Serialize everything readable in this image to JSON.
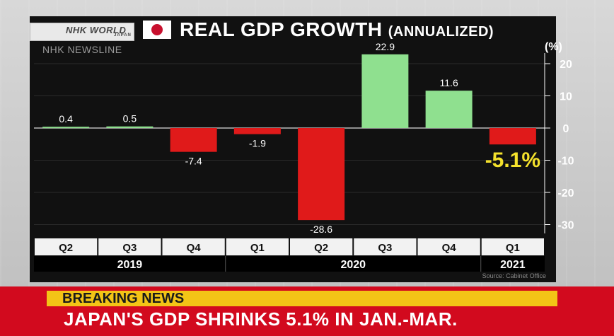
{
  "logo": {
    "brand": "NHK WORLD",
    "sub": "JAPAN"
  },
  "header": {
    "title_main": "REAL GDP GROWTH",
    "title_paren": "(ANNUALIZED)",
    "watermark": "NHK NEWSLINE"
  },
  "unit": "(%)",
  "source": "Source: Cabinet Office",
  "breaking": {
    "tag": "BREAKING NEWS",
    "headline": "JAPAN'S GDP SHRINKS 5.1% IN JAN.-MAR."
  },
  "colors": {
    "positive": "#8fe08f",
    "negative": "#e01a1a",
    "highlight": "#f4e12c"
  },
  "chart_data": {
    "type": "bar",
    "categories": [
      "Q2",
      "Q3",
      "Q4",
      "Q1",
      "Q2",
      "Q3",
      "Q4",
      "Q1"
    ],
    "years": [
      {
        "label": "2019",
        "span": [
          0,
          2
        ]
      },
      {
        "label": "2020",
        "span": [
          3,
          6
        ]
      },
      {
        "label": "2021",
        "span": [
          7,
          7
        ]
      }
    ],
    "values": [
      0.4,
      0.5,
      -7.4,
      -1.9,
      -28.6,
      22.9,
      11.6,
      -5.1
    ],
    "value_labels": [
      "0.4",
      "0.5",
      "-7.4",
      "-1.9",
      "-28.6",
      "22.9",
      "11.6",
      "-5.1%"
    ],
    "highlight_index": 7,
    "title": "REAL GDP GROWTH (ANNUALIZED)",
    "ylabel": "(%)",
    "yticks": [
      20,
      10,
      0,
      -10,
      -20,
      -30
    ],
    "ylim": [
      -35,
      25
    ],
    "grid": true
  }
}
